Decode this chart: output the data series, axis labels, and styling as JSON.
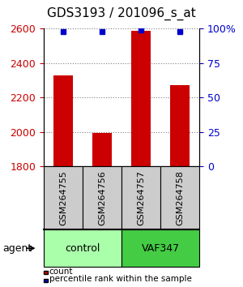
{
  "title": "GDS3193 / 201096_s_at",
  "samples": [
    "GSM264755",
    "GSM264756",
    "GSM264757",
    "GSM264758"
  ],
  "counts": [
    2330,
    1995,
    2590,
    2270
  ],
  "percentile_ranks": [
    98,
    98,
    99,
    98
  ],
  "ylim_left": [
    1800,
    2600
  ],
  "ylim_right": [
    0,
    100
  ],
  "yticks_left": [
    1800,
    2000,
    2200,
    2400,
    2600
  ],
  "yticks_right": [
    0,
    25,
    50,
    75,
    100
  ],
  "ytick_labels_right": [
    "0",
    "25",
    "50",
    "75",
    "100%"
  ],
  "bar_color": "#cc0000",
  "dot_color": "#0000cc",
  "groups": [
    {
      "label": "control",
      "samples": [
        0,
        1
      ],
      "color": "#aaffaa"
    },
    {
      "label": "VAF347",
      "samples": [
        2,
        3
      ],
      "color": "#44cc44"
    }
  ],
  "group_label": "agent",
  "legend_items": [
    {
      "color": "#cc0000",
      "label": "count"
    },
    {
      "color": "#0000cc",
      "label": "percentile rank within the sample"
    }
  ],
  "left_tick_color": "#cc0000",
  "right_tick_color": "#0000cc",
  "title_fontsize": 11,
  "axis_fontsize": 9,
  "sample_label_fontsize": 8
}
